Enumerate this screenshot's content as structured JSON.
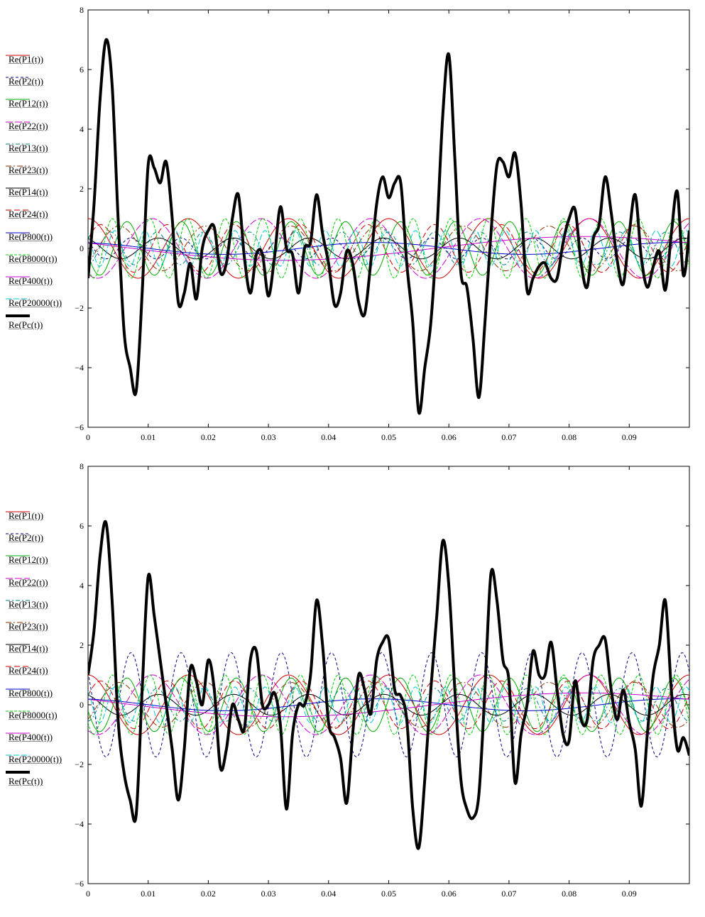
{
  "series_styles": [
    {
      "name": "Re(P1(t))",
      "color": "#cc0000",
      "dash": "",
      "width": 1,
      "amp": 1.0,
      "freq": 60,
      "phase": 0.0
    },
    {
      "name": "Re(P2(t))",
      "color": "#000080",
      "dash": "4,3",
      "width": 1,
      "amp": 0.35,
      "freq": 120,
      "phase": 0.9
    },
    {
      "name": "Re(P12(t))",
      "color": "#00aa00",
      "dash": "",
      "width": 1,
      "amp": 0.9,
      "freq": 110,
      "phase": 1.8
    },
    {
      "name": "Re(P22(t))",
      "color": "#cc00cc",
      "dash": "10,3",
      "width": 1,
      "amp": 1.0,
      "freq": 55,
      "phase": 2.6
    },
    {
      "name": "Re(P13(t))",
      "color": "#008080",
      "dash": "6,3,2,3",
      "width": 1,
      "amp": 0.55,
      "freq": 130,
      "phase": 3.2
    },
    {
      "name": "Re(P23(t))",
      "color": "#883300",
      "dash": "8,3,2,3",
      "width": 1,
      "amp": 0.75,
      "freq": 70,
      "phase": 4.0
    },
    {
      "name": "Re(P14(t))",
      "color": "#000000",
      "dash": "",
      "width": 1,
      "amp": 0.35,
      "freq": 80,
      "phase": 0.4
    },
    {
      "name": "Re(P24(t))",
      "color": "#cc0000",
      "dash": "8,4",
      "width": 1,
      "amp": 0.8,
      "freq": 90,
      "phase": 5.1
    },
    {
      "name": "Re(P800(t))",
      "color": "#0000cc",
      "dash": "",
      "width": 1,
      "amp": 0.2,
      "freq": 20,
      "phase": 0.3
    },
    {
      "name": "Re(P8000(t))",
      "color": "#00cc00",
      "dash": "4,2",
      "width": 1,
      "amp": 1.0,
      "freq": 160,
      "phase": 2.2
    },
    {
      "name": "Re(P400(t))",
      "color": "#cc00cc",
      "dash": "",
      "width": 1,
      "amp": 0.4,
      "freq": 10,
      "phase": 1.1
    },
    {
      "name": "Re(P20000(t))",
      "color": "#00cccc",
      "dash": "8,3",
      "width": 1,
      "amp": 0.6,
      "freq": 200,
      "phase": 0.7
    },
    {
      "name": "Re(Pc(t))",
      "color": "#000000",
      "dash": "",
      "width": 4
    }
  ],
  "chart_data": [
    {
      "type": "line",
      "title": "",
      "xlabel": "",
      "ylabel": "",
      "xlim": [
        0,
        0.1
      ],
      "ylim": [
        -6,
        8
      ],
      "x_ticks": [
        "0",
        "0.01",
        "0.02",
        "0.03",
        "0.04",
        "0.05",
        "0.06",
        "0.07",
        "0.08",
        "0.09"
      ],
      "y_ticks": [
        "8",
        "6",
        "4",
        "2",
        "0",
        "−2",
        "−4",
        "−6"
      ],
      "legend": [
        "Re(P1(t))",
        "Re(P2(t))",
        "Re(P12(t))",
        "Re(P22(t))",
        "Re(P13(t))",
        "Re(P23(t))",
        "Re(P14(t))",
        "Re(P24(t))",
        "Re(P800(t))",
        "Re(P8000(t))",
        "Re(P400(t))",
        "Re(P20000(t))",
        "Re(Pc(t))"
      ],
      "legend_position": "left",
      "grid": false,
      "series": [
        {
          "name": "Re(Pc(t))",
          "x": [
            0,
            0.001,
            0.002,
            0.003,
            0.004,
            0.005,
            0.006,
            0.007,
            0.008,
            0.009,
            0.01,
            0.011,
            0.012,
            0.013,
            0.014,
            0.015,
            0.016,
            0.017,
            0.018,
            0.019,
            0.02,
            0.021,
            0.022,
            0.023,
            0.024,
            0.025,
            0.026,
            0.027,
            0.028,
            0.029,
            0.03,
            0.031,
            0.032,
            0.033,
            0.034,
            0.035,
            0.036,
            0.037,
            0.038,
            0.039,
            0.04,
            0.041,
            0.042,
            0.043,
            0.044,
            0.045,
            0.046,
            0.047,
            0.048,
            0.049,
            0.05,
            0.051,
            0.052,
            0.053,
            0.054,
            0.055,
            0.056,
            0.057,
            0.058,
            0.059,
            0.06,
            0.061,
            0.062,
            0.063,
            0.064,
            0.065,
            0.066,
            0.067,
            0.068,
            0.069,
            0.07,
            0.071,
            0.072,
            0.073,
            0.074,
            0.075,
            0.076,
            0.077,
            0.078,
            0.079,
            0.08,
            0.081,
            0.082,
            0.083,
            0.084,
            0.085,
            0.086,
            0.087,
            0.088,
            0.089,
            0.09,
            0.091,
            0.092,
            0.093,
            0.094,
            0.095,
            0.096,
            0.097,
            0.098,
            0.099,
            0.1
          ],
          "y": [
            -1.0,
            1.5,
            5.0,
            7.0,
            5.5,
            1.0,
            -2.8,
            -4.0,
            -4.8,
            -1.5,
            2.8,
            2.7,
            2.2,
            2.9,
            1.0,
            -1.8,
            -1.5,
            -0.5,
            -1.7,
            0.0,
            0.6,
            0.7,
            -0.8,
            -0.5,
            1.0,
            1.8,
            -0.3,
            -1.5,
            -0.2,
            -0.2,
            -1.6,
            -0.3,
            1.4,
            0.0,
            -0.2,
            -1.5,
            0.0,
            0.2,
            1.8,
            0.5,
            -0.5,
            -1.9,
            -1.5,
            -0.1,
            -0.5,
            -1.8,
            -2.2,
            -0.5,
            1.5,
            2.4,
            1.7,
            2.2,
            2.2,
            -0.5,
            -2.5,
            -5.5,
            -4.0,
            -2.5,
            0.5,
            4.5,
            6.5,
            3.0,
            -0.8,
            -1.3,
            -3.0,
            -5.0,
            -2.5,
            0.5,
            2.8,
            2.9,
            2.4,
            3.2,
            1.5,
            -1.4,
            -1.0,
            -0.6,
            -0.5,
            -1.0,
            -1.0,
            0.2,
            1.0,
            1.3,
            -0.5,
            -1.3,
            0.3,
            0.8,
            2.4,
            1.2,
            -0.4,
            -1.2,
            0.5,
            1.8,
            -0.3,
            -1.3,
            -0.6,
            -0.1,
            -1.4,
            0.5,
            1.9,
            -0.9,
            0.6
          ]
        },
        {
          "name": "Re(P2(t))",
          "amp": 0.35
        }
      ]
    },
    {
      "type": "line",
      "title": "",
      "xlabel": "",
      "ylabel": "",
      "xlim": [
        0,
        0.1
      ],
      "ylim": [
        -6,
        8
      ],
      "x_ticks": [
        "0",
        "0.01",
        "0.02",
        "0.03",
        "0.04",
        "0.05",
        "0.06",
        "0.07",
        "0.08",
        "0.09"
      ],
      "y_ticks": [
        "8",
        "6",
        "4",
        "2",
        "0",
        "−2",
        "−4",
        "−6"
      ],
      "legend": [
        "Re(P1(t))",
        "Re(P2(t))",
        "Re(P12(t))",
        "Re(P22(t))",
        "Re(P13(t))",
        "Re(P23(t))",
        "Re(P14(t))",
        "Re(P24(t))",
        "Re(P800(t))",
        "Re(P8000(t))",
        "Re(P400(t))",
        "Re(P20000(t))",
        "Re(Pc(t))"
      ],
      "legend_position": "left",
      "grid": false,
      "series": [
        {
          "name": "Re(Pc(t))",
          "x": [
            0,
            0.001,
            0.002,
            0.003,
            0.004,
            0.005,
            0.006,
            0.007,
            0.008,
            0.009,
            0.01,
            0.011,
            0.012,
            0.013,
            0.014,
            0.015,
            0.016,
            0.017,
            0.018,
            0.019,
            0.02,
            0.021,
            0.022,
            0.023,
            0.024,
            0.025,
            0.026,
            0.027,
            0.028,
            0.029,
            0.03,
            0.031,
            0.032,
            0.033,
            0.034,
            0.035,
            0.036,
            0.037,
            0.038,
            0.039,
            0.04,
            0.041,
            0.042,
            0.043,
            0.044,
            0.045,
            0.046,
            0.047,
            0.048,
            0.049,
            0.05,
            0.051,
            0.052,
            0.053,
            0.054,
            0.055,
            0.056,
            0.057,
            0.058,
            0.059,
            0.06,
            0.061,
            0.062,
            0.063,
            0.064,
            0.065,
            0.066,
            0.067,
            0.068,
            0.069,
            0.07,
            0.071,
            0.072,
            0.073,
            0.074,
            0.075,
            0.076,
            0.077,
            0.078,
            0.079,
            0.08,
            0.081,
            0.082,
            0.083,
            0.084,
            0.085,
            0.086,
            0.087,
            0.088,
            0.089,
            0.09,
            0.091,
            0.092,
            0.093,
            0.094,
            0.095,
            0.096,
            0.097,
            0.098,
            0.099,
            0.1
          ],
          "y": [
            1.0,
            2.5,
            5.0,
            6.1,
            3.5,
            -0.5,
            -2.3,
            -3.2,
            -3.7,
            0.5,
            4.3,
            3.0,
            1.5,
            0.0,
            -1.5,
            -3.2,
            -1.5,
            1.2,
            0.8,
            0.0,
            1.5,
            0.5,
            -2.1,
            -1.5,
            0.0,
            -0.5,
            -0.8,
            1.5,
            1.8,
            0.0,
            0.0,
            0.4,
            -0.7,
            -3.5,
            -1.0,
            0.0,
            0.0,
            1.0,
            3.5,
            2.0,
            -0.6,
            -1.1,
            -1.8,
            -3.3,
            -1.0,
            1.0,
            0.5,
            -0.3,
            1.5,
            2.1,
            2.2,
            0.5,
            0.3,
            -0.5,
            -3.5,
            -4.8,
            -2.5,
            0.5,
            3.0,
            5.5,
            4.0,
            0.5,
            -2.5,
            -3.5,
            -3.8,
            -3.0,
            0.5,
            4.4,
            3.5,
            1.5,
            0.8,
            -2.6,
            -1.0,
            0.0,
            1.8,
            1.0,
            1.0,
            2.1,
            0.5,
            -1.0,
            -1.2,
            0.8,
            -0.5,
            -0.5,
            1.5,
            2.0,
            2.2,
            0.5,
            -0.5,
            0.5,
            -0.6,
            -1.5,
            -3.4,
            -1.0,
            1.0,
            2.0,
            3.5,
            0.5,
            -1.5,
            -1.1,
            -1.7
          ]
        },
        {
          "name": "Re(P2(t))",
          "amp": 1.75
        }
      ]
    }
  ]
}
